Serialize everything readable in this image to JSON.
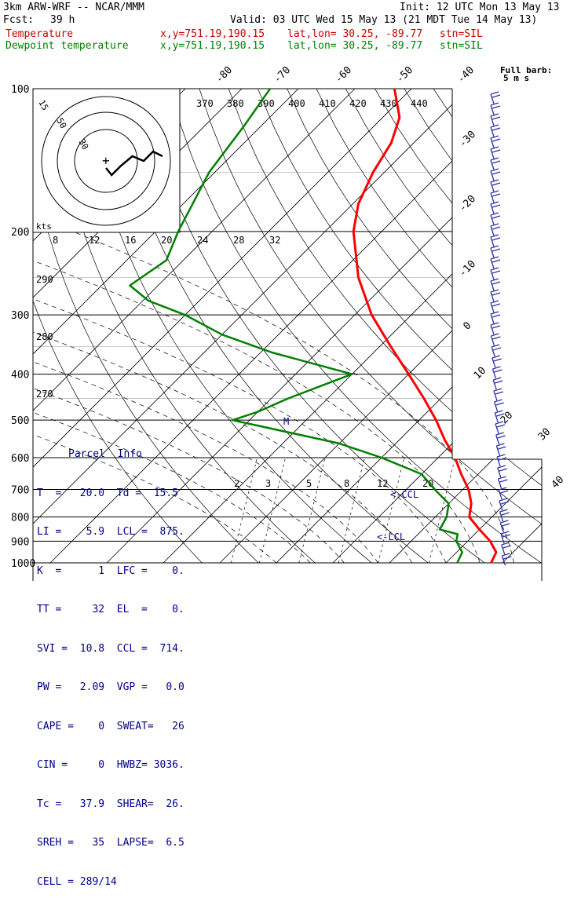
{
  "header": {
    "model": "3km ARW-WRF -- NCAR/MMM",
    "init": "Init: 12 UTC Mon 13 May 13",
    "fcst_label": "Fcst:",
    "fcst_value": "39 h",
    "valid": "Valid: 03 UTC Wed 15 May 13 (21 MDT Tue 14 May 13)",
    "lines": [
      {
        "name": "Temperature",
        "xy": "x,y=751.19,190.15",
        "latlon": "lat,lon= 30.25, -89.77",
        "stn": "stn=SIL",
        "color": "#cc0000"
      },
      {
        "name": "Dewpoint temperature",
        "xy": "x,y=751.19,190.15",
        "latlon": "lat,lon= 30.25, -89.77",
        "stn": "stn=SIL",
        "color": "#008000"
      }
    ]
  },
  "chart_data": {
    "type": "line",
    "subtype": "skew-T log-P sounding",
    "pressure_ticks": [
      "100",
      "200",
      "300",
      "400",
      "500",
      "600",
      "700",
      "800",
      "900",
      "1000"
    ],
    "isotherm_labels": [
      "-80",
      "-70",
      "-60",
      "-50",
      "-40",
      "-30",
      "-20",
      "-10",
      "0",
      "10",
      "20",
      "30",
      "40"
    ],
    "theta_labels": [
      "370",
      "380",
      "390",
      "400",
      "410",
      "420",
      "430",
      "440"
    ],
    "mixing_ratio_labels": [
      "2",
      "3",
      "5",
      "8",
      "12",
      "20"
    ],
    "hodograph_speed_labels": [
      "8",
      "12",
      "16",
      "20",
      "24",
      "28",
      "32"
    ],
    "hodograph_unit": "kts",
    "hodograph_ring_labels": [
      "15",
      "50",
      "30"
    ],
    "height_labels": [
      "290",
      "280",
      "270"
    ],
    "barb_label_1": "Full barb:",
    "barb_label_2": "5 m s",
    "series": [
      {
        "name": "Temperature",
        "color": "#ff0000",
        "points": [
          [
            100,
            -73
          ],
          [
            115,
            -67
          ],
          [
            130,
            -64
          ],
          [
            150,
            -62
          ],
          [
            175,
            -59
          ],
          [
            200,
            -55
          ],
          [
            250,
            -46
          ],
          [
            300,
            -37
          ],
          [
            350,
            -28
          ],
          [
            400,
            -20
          ],
          [
            450,
            -13
          ],
          [
            500,
            -7
          ],
          [
            550,
            -2
          ],
          [
            600,
            3
          ],
          [
            650,
            7
          ],
          [
            700,
            11
          ],
          [
            750,
            14
          ],
          [
            800,
            16
          ],
          [
            850,
            20
          ],
          [
            900,
            24
          ],
          [
            950,
            27
          ],
          [
            1000,
            28
          ]
        ]
      },
      {
        "name": "Dewpoint temperature",
        "color": "#008000",
        "points": [
          [
            100,
            -95
          ],
          [
            120,
            -93
          ],
          [
            150,
            -91
          ],
          [
            200,
            -86
          ],
          [
            230,
            -83
          ],
          [
            260,
            -85
          ],
          [
            280,
            -79
          ],
          [
            300,
            -70
          ],
          [
            330,
            -60
          ],
          [
            360,
            -48
          ],
          [
            400,
            -30
          ],
          [
            450,
            -37
          ],
          [
            480,
            -40
          ],
          [
            500,
            -43
          ],
          [
            520,
            -35
          ],
          [
            560,
            -20
          ],
          [
            600,
            -10
          ],
          [
            650,
            0
          ],
          [
            700,
            5
          ],
          [
            750,
            10
          ],
          [
            800,
            12
          ],
          [
            850,
            13
          ],
          [
            870,
            17
          ],
          [
            900,
            18
          ],
          [
            950,
            21
          ],
          [
            1000,
            22
          ]
        ]
      }
    ],
    "annotations": [
      "<-CCL",
      "<-LCL"
    ],
    "hodograph": [
      [
        0,
        3
      ],
      [
        3,
        6
      ],
      [
        8,
        2
      ],
      [
        14,
        -2
      ],
      [
        20,
        0
      ],
      [
        25,
        -4
      ],
      [
        30,
        -2
      ]
    ]
  },
  "parcel_info": {
    "title": "Parcel  Info",
    "rows": [
      "T  =   20.0  Td =  15.5",
      "LI =    5.9  LCL =  875.",
      "K  =      1  LFC =    0.",
      "TT =     32  EL  =    0.",
      "SVI =  10.8  CCL =  714.",
      "PW =   2.09  VGP =   0.0",
      "CAPE =    0  SWEAT=   26",
      "CIN =     0  HWBZ= 3036.",
      "Tc =   37.9  SHEAR=  26.",
      "SREH =   35  LAPSE=  6.5",
      "CELL = 289/14"
    ]
  }
}
